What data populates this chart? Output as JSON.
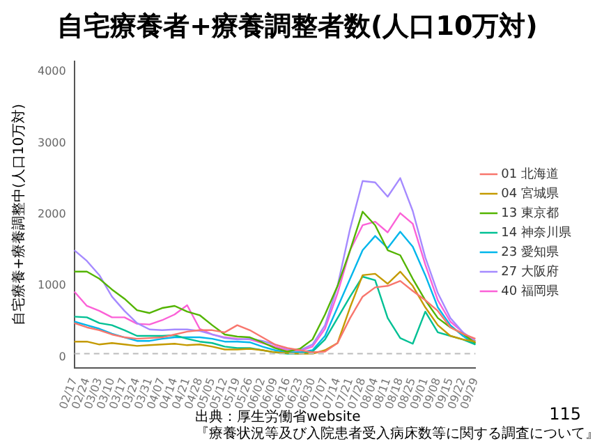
{
  "chart_data": {
    "type": "line",
    "title": "自宅療養者+療養調整者数(人口10万対)",
    "ylabel": "自宅療養+療養調整中(人口10万対)",
    "categories": [
      "02/17",
      "02/24",
      "03/03",
      "03/10",
      "03/17",
      "03/24",
      "03/31",
      "04/07",
      "04/14",
      "04/21",
      "04/28",
      "05/05",
      "05/12",
      "05/19",
      "05/26",
      "06/02",
      "06/09",
      "06/16",
      "06/23",
      "06/30",
      "07/07",
      "07/14",
      "07/21",
      "07/28",
      "08/04",
      "08/11",
      "08/18",
      "08/25",
      "09/01",
      "09/08",
      "09/15",
      "09/22",
      "09/29"
    ],
    "series": [
      {
        "name": "01 北海道",
        "color": "#f8766d",
        "values": [
          480,
          420,
          380,
          320,
          280,
          260,
          270,
          280,
          320,
          360,
          380,
          380,
          350,
          450,
          380,
          280,
          180,
          130,
          100,
          70,
          80,
          200,
          550,
          850,
          980,
          1000,
          1070,
          930,
          800,
          650,
          420,
          330,
          260
        ]
      },
      {
        "name": "04 宮城県",
        "color": "#c49a00",
        "values": [
          220,
          220,
          180,
          200,
          180,
          160,
          170,
          180,
          190,
          170,
          180,
          150,
          110,
          110,
          120,
          100,
          70,
          60,
          50,
          50,
          100,
          200,
          700,
          1150,
          1170,
          1030,
          1200,
          1000,
          700,
          450,
          300,
          250,
          220
        ]
      },
      {
        "name": "13 東京都",
        "color": "#53b400",
        "values": [
          1200,
          1200,
          1100,
          950,
          820,
          660,
          620,
          690,
          720,
          640,
          590,
          450,
          320,
          290,
          280,
          210,
          130,
          80,
          120,
          250,
          600,
          1000,
          1500,
          2040,
          1850,
          1500,
          1430,
          1100,
          800,
          550,
          420,
          330,
          200
        ]
      },
      {
        "name": "14 神奈川県",
        "color": "#00c094",
        "values": [
          570,
          560,
          480,
          450,
          380,
          300,
          300,
          300,
          310,
          260,
          220,
          200,
          150,
          130,
          130,
          100,
          70,
          50,
          50,
          80,
          250,
          550,
          850,
          1130,
          1080,
          550,
          270,
          190,
          640,
          350,
          300,
          250,
          180
        ]
      },
      {
        "name": "23 愛知県",
        "color": "#00b6eb",
        "values": [
          500,
          450,
          400,
          330,
          280,
          230,
          230,
          260,
          280,
          280,
          280,
          260,
          220,
          220,
          210,
          150,
          100,
          70,
          70,
          100,
          300,
          700,
          1100,
          1500,
          1700,
          1530,
          1760,
          1550,
          1150,
          700,
          450,
          300,
          180
        ]
      },
      {
        "name": "27 大阪府",
        "color": "#a58aff",
        "values": [
          1500,
          1350,
          1150,
          850,
          650,
          480,
          390,
          380,
          390,
          390,
          370,
          320,
          270,
          250,
          260,
          230,
          180,
          120,
          100,
          180,
          450,
          1000,
          1800,
          2470,
          2450,
          2250,
          2510,
          2050,
          1400,
          900,
          550,
          350,
          230
        ]
      },
      {
        "name": "40 福岡県",
        "color": "#fb61d7",
        "values": [
          920,
          720,
          650,
          560,
          560,
          470,
          460,
          520,
          600,
          730,
          400,
          320,
          280,
          260,
          250,
          200,
          150,
          100,
          90,
          150,
          400,
          900,
          1500,
          1850,
          1900,
          1750,
          2020,
          1870,
          1300,
          800,
          500,
          350,
          200
        ]
      }
    ],
    "ylim": [
      -150,
      4150
    ],
    "yticks": [
      0,
      1000,
      2000,
      3000,
      4000
    ],
    "grid": false,
    "legend": "right",
    "ref_lines": [
      {
        "axis": "y",
        "value": 50,
        "color": "#bbbbbb",
        "line_style": "dashed"
      }
    ],
    "annotations": [
      "出典：厚生労働省website",
      "『療養状況等及び入院患者受入病床数等に関する調査について』",
      "115"
    ]
  }
}
